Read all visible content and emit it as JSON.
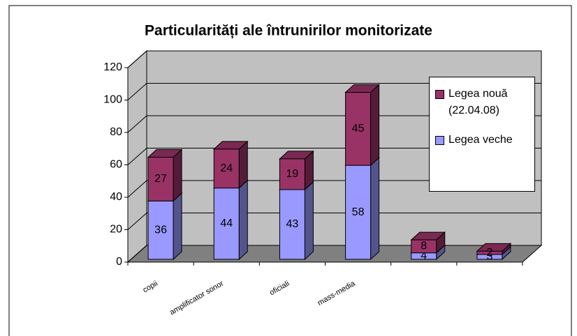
{
  "chart_data": {
    "type": "bar3d_stacked",
    "title": "Particularități ale întrunirilor monitorizate",
    "categories": [
      "copii",
      "amplificator sonor",
      "oficiali",
      "mass-media",
      null,
      null
    ],
    "series": [
      {
        "name": "Legea veche",
        "color": "#9999ff",
        "values": [
          36,
          44,
          43,
          58,
          4,
          3
        ]
      },
      {
        "name": "Legea nouă (22.04.08)",
        "color": "#993366",
        "values": [
          27,
          24,
          19,
          45,
          8,
          2
        ]
      }
    ],
    "ylim": [
      0,
      120
    ],
    "yticks": [
      0,
      20,
      40,
      60,
      80,
      100,
      120
    ],
    "grid": true,
    "legend": "right"
  }
}
